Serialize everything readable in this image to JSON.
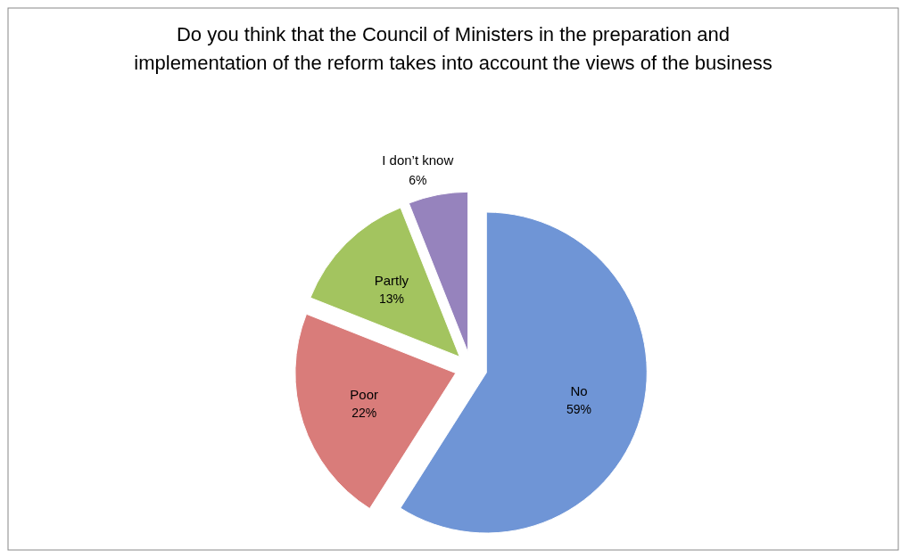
{
  "chart_data": {
    "type": "pie",
    "title": "Do you think that the Council of Ministers in the preparation and implementation of the reform takes into account the views of the business",
    "categories": [
      "No",
      "Poor",
      "Partly",
      "I don’t know"
    ],
    "values": [
      59,
      22,
      13,
      6
    ],
    "colors": [
      "#6f95d6",
      "#d97c7a",
      "#a3c45f",
      "#9683bd"
    ],
    "value_labels": [
      "59%",
      "22%",
      "13%",
      "6%"
    ]
  }
}
